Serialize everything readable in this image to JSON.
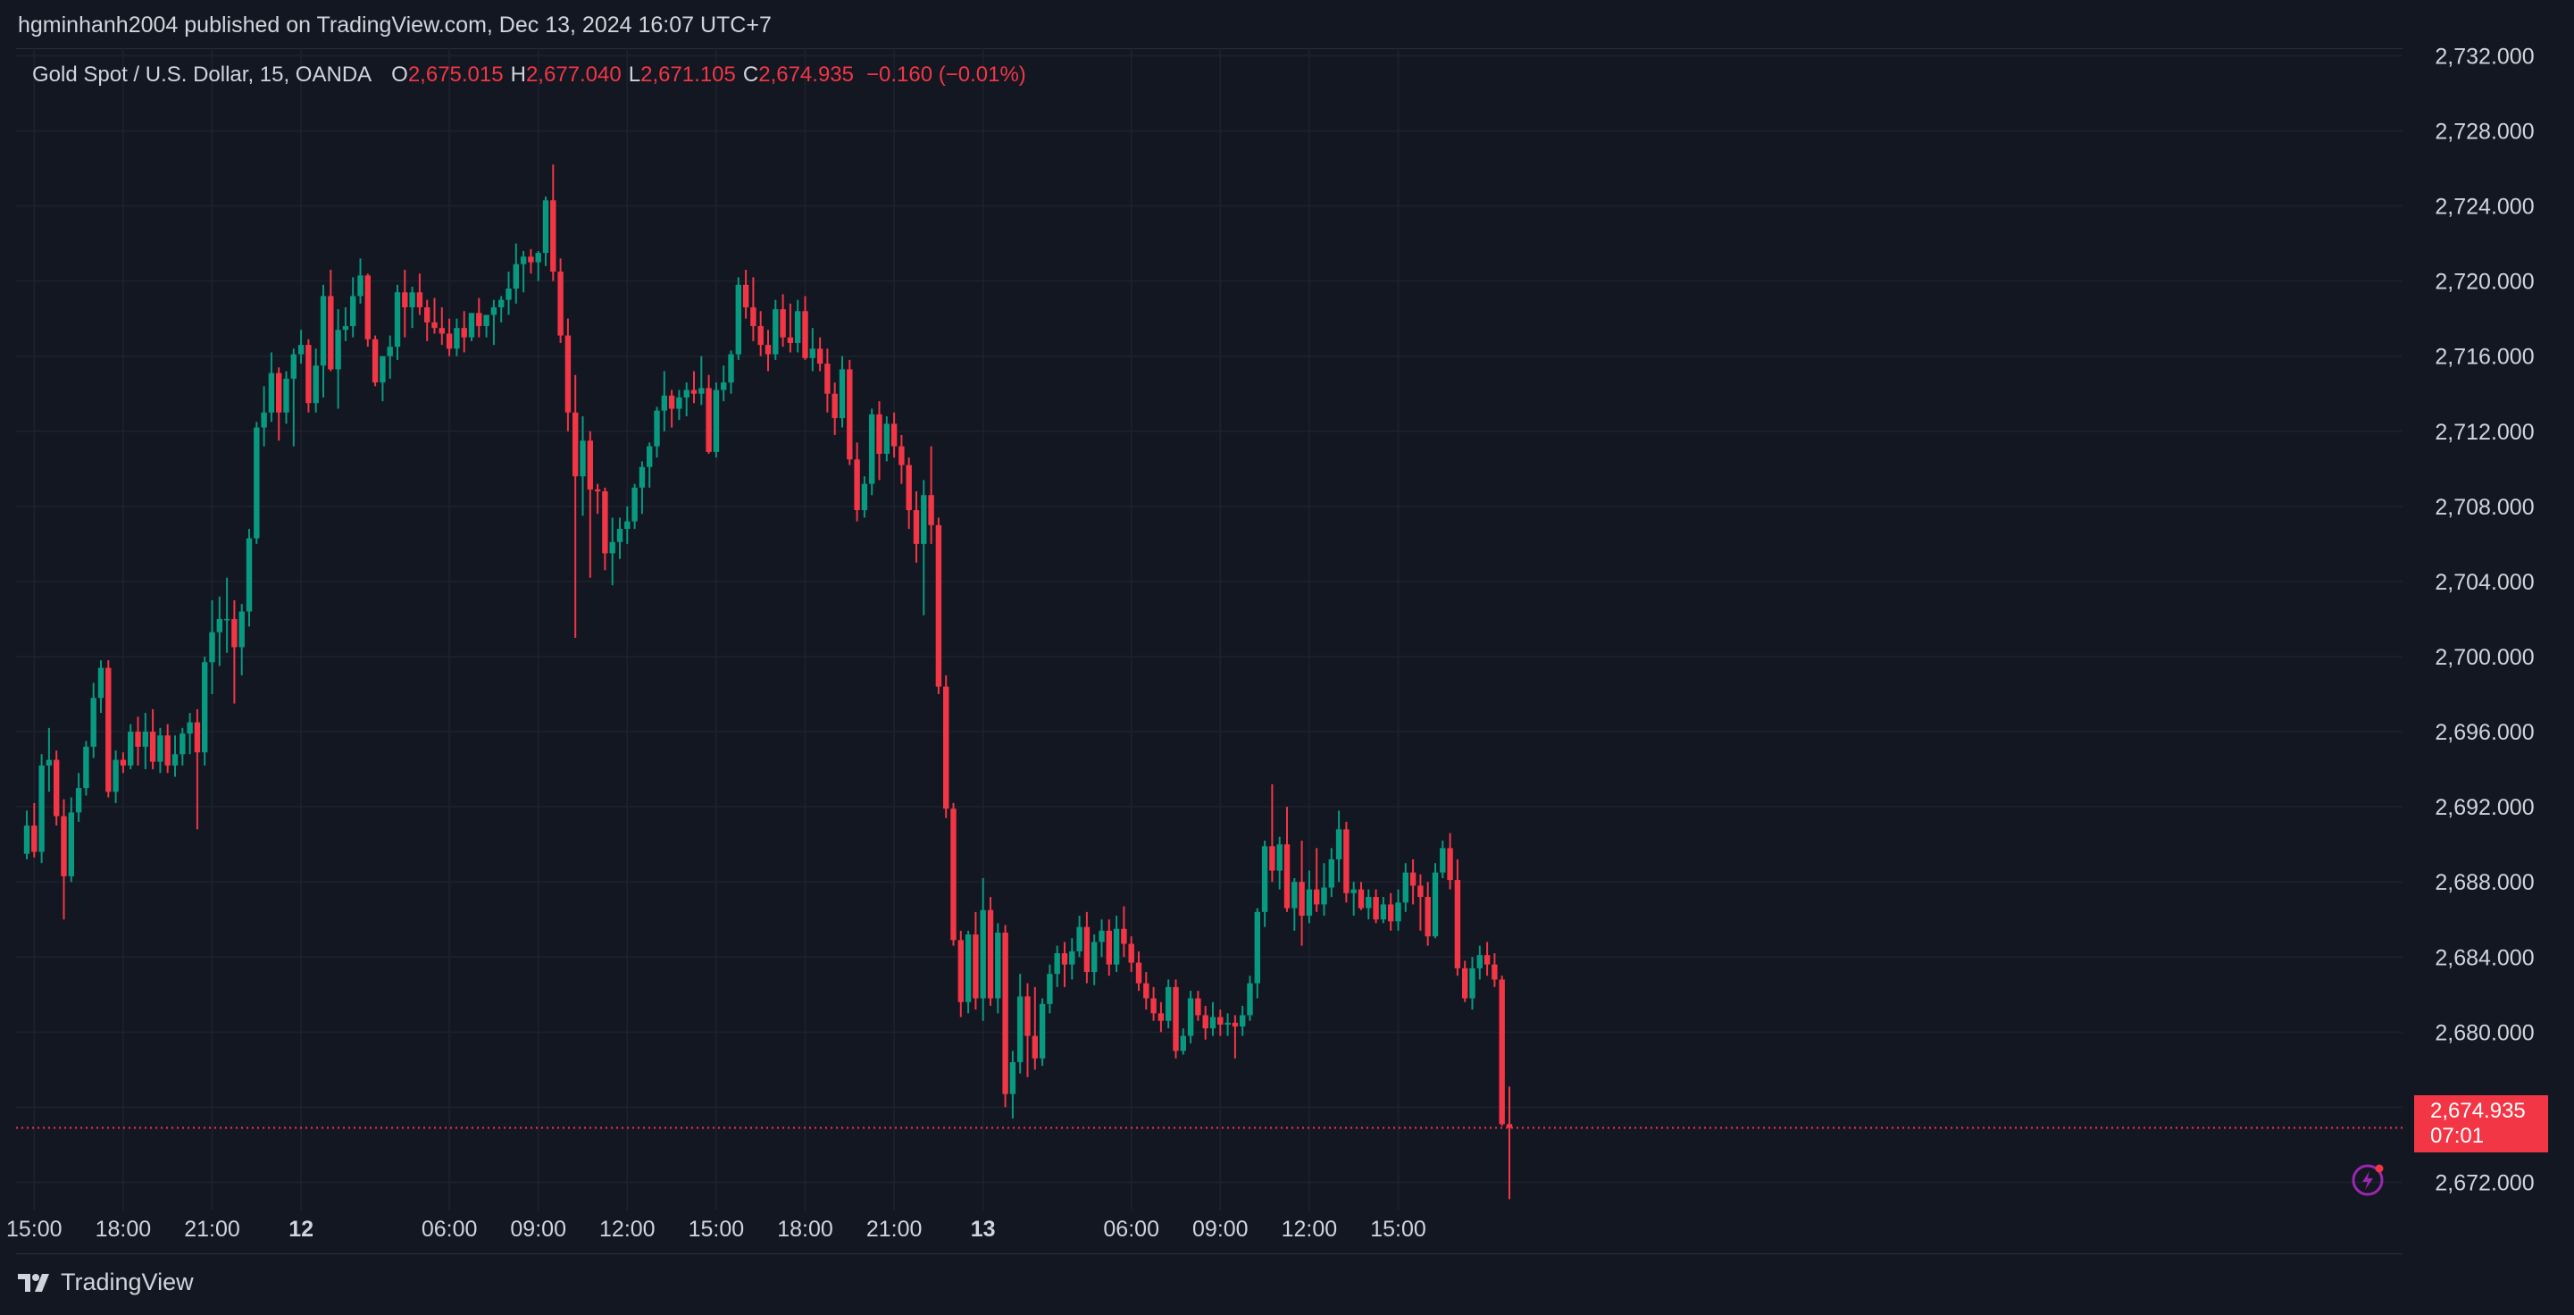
{
  "header": {
    "published_by": "hgminhanh2004 published on TradingView.com, Dec 13, 2024 16:07 UTC+7"
  },
  "legend": {
    "symbol": "Gold Spot / U.S. Dollar, 15, OANDA",
    "open_label": "O",
    "open": "2,675.015",
    "high_label": "H",
    "high": "2,677.040",
    "low_label": "L",
    "low": "2,671.105",
    "close_label": "C",
    "close": "2,674.935",
    "change": "−0.160 (−0.01%)"
  },
  "last_price": {
    "price": "2,674.935",
    "countdown": "07:01"
  },
  "footer": {
    "brand": "TradingView"
  },
  "colors": {
    "background": "#131722",
    "up": "#089981",
    "down": "#f23645",
    "grid": "#1e222d",
    "text": "#d1d4dc"
  },
  "icons": [
    "tradingview-logo-icon",
    "lightning-alert-icon"
  ],
  "chart_data": {
    "type": "candlestick",
    "timeframe": "15",
    "y_ticks": [
      "2,732.000",
      "2,728.000",
      "2,724.000",
      "2,720.000",
      "2,716.000",
      "2,712.000",
      "2,708.000",
      "2,704.000",
      "2,700.000",
      "2,696.000",
      "2,692.000",
      "2,688.000",
      "2,684.000",
      "2,680.000",
      "2,676.000",
      "2,672.000"
    ],
    "ylim": [
      2670.5,
      2732.4
    ],
    "x_ticks": [
      {
        "label": "15:00",
        "bar": 1,
        "bold": false
      },
      {
        "label": "18:00",
        "bar": 13,
        "bold": false
      },
      {
        "label": "21:00",
        "bar": 25,
        "bold": false
      },
      {
        "label": "12",
        "bar": 37,
        "bold": true
      },
      {
        "label": "06:00",
        "bar": 57,
        "bold": false
      },
      {
        "label": "09:00",
        "bar": 69,
        "bold": false
      },
      {
        "label": "12:00",
        "bar": 81,
        "bold": false
      },
      {
        "label": "15:00",
        "bar": 93,
        "bold": false
      },
      {
        "label": "18:00",
        "bar": 105,
        "bold": false
      },
      {
        "label": "21:00",
        "bar": 117,
        "bold": false
      },
      {
        "label": "13",
        "bar": 129,
        "bold": true
      },
      {
        "label": "06:00",
        "bar": 149,
        "bold": false
      },
      {
        "label": "09:00",
        "bar": 161,
        "bold": false
      },
      {
        "label": "12:00",
        "bar": 173,
        "bold": false
      },
      {
        "label": "15:00",
        "bar": 185,
        "bold": false
      }
    ],
    "candles": [
      [
        2689.5,
        2691.8,
        2689.2,
        2691.0
      ],
      [
        2691.0,
        2692.2,
        2689.3,
        2689.6
      ],
      [
        2689.6,
        2694.8,
        2689.0,
        2694.2
      ],
      [
        2694.2,
        2696.2,
        2692.8,
        2694.5
      ],
      [
        2694.5,
        2695.0,
        2691.0,
        2691.5
      ],
      [
        2691.5,
        2692.4,
        2686.0,
        2688.3
      ],
      [
        2688.3,
        2692.5,
        2688.0,
        2691.7
      ],
      [
        2691.7,
        2693.8,
        2691.2,
        2693.0
      ],
      [
        2693.0,
        2695.5,
        2692.6,
        2695.2
      ],
      [
        2695.2,
        2698.6,
        2694.6,
        2697.8
      ],
      [
        2697.8,
        2699.8,
        2697.0,
        2699.4
      ],
      [
        2699.4,
        2699.8,
        2692.5,
        2692.8
      ],
      [
        2692.8,
        2695.0,
        2692.2,
        2694.5
      ],
      [
        2694.5,
        2694.9,
        2693.8,
        2694.2
      ],
      [
        2694.2,
        2696.4,
        2694.0,
        2696.0
      ],
      [
        2696.0,
        2696.8,
        2694.2,
        2695.2
      ],
      [
        2695.2,
        2697.0,
        2694.0,
        2696.0
      ],
      [
        2696.0,
        2697.2,
        2694.0,
        2694.4
      ],
      [
        2694.4,
        2696.2,
        2693.8,
        2695.8
      ],
      [
        2695.8,
        2696.4,
        2693.8,
        2694.2
      ],
      [
        2694.2,
        2695.8,
        2693.6,
        2694.8
      ],
      [
        2694.8,
        2696.2,
        2694.2,
        2695.9
      ],
      [
        2695.9,
        2697.0,
        2694.8,
        2696.5
      ],
      [
        2696.5,
        2697.2,
        2690.8,
        2694.9
      ],
      [
        2694.9,
        2700.0,
        2694.2,
        2699.7
      ],
      [
        2699.7,
        2703.0,
        2698.0,
        2701.3
      ],
      [
        2701.3,
        2703.2,
        2699.5,
        2702.0
      ],
      [
        2702.0,
        2704.2,
        2700.2,
        2702.0
      ],
      [
        2702.0,
        2703.0,
        2697.5,
        2700.5
      ],
      [
        2700.5,
        2702.8,
        2699.0,
        2702.4
      ],
      [
        2702.4,
        2706.8,
        2701.6,
        2706.3
      ],
      [
        2706.3,
        2712.5,
        2706.0,
        2712.2
      ],
      [
        2712.2,
        2714.4,
        2711.2,
        2713.0
      ],
      [
        2713.0,
        2716.2,
        2712.5,
        2715.1
      ],
      [
        2715.1,
        2715.4,
        2711.5,
        2713.0
      ],
      [
        2713.0,
        2715.2,
        2712.4,
        2714.8
      ],
      [
        2714.8,
        2716.4,
        2711.2,
        2716.1
      ],
      [
        2716.1,
        2717.4,
        2715.6,
        2716.6
      ],
      [
        2716.6,
        2716.9,
        2713.0,
        2713.5
      ],
      [
        2713.5,
        2716.4,
        2713.0,
        2715.5
      ],
      [
        2715.5,
        2719.8,
        2713.8,
        2719.2
      ],
      [
        2719.2,
        2720.6,
        2715.2,
        2715.3
      ],
      [
        2715.3,
        2718.5,
        2713.2,
        2717.4
      ],
      [
        2717.4,
        2718.6,
        2716.8,
        2717.6
      ],
      [
        2717.6,
        2720.2,
        2717.0,
        2719.2
      ],
      [
        2719.2,
        2721.2,
        2718.8,
        2720.3
      ],
      [
        2720.3,
        2720.4,
        2716.5,
        2716.9
      ],
      [
        2716.9,
        2717.1,
        2714.4,
        2714.6
      ],
      [
        2714.6,
        2716.0,
        2713.6,
        2716.0
      ],
      [
        2716.0,
        2717.1,
        2714.8,
        2716.5
      ],
      [
        2716.5,
        2719.8,
        2715.8,
        2719.4
      ],
      [
        2719.4,
        2720.6,
        2717.0,
        2718.6
      ],
      [
        2718.6,
        2719.7,
        2717.5,
        2719.4
      ],
      [
        2719.4,
        2720.4,
        2718.2,
        2718.6
      ],
      [
        2718.6,
        2719.0,
        2716.8,
        2717.8
      ],
      [
        2717.8,
        2719.1,
        2717.2,
        2717.5
      ],
      [
        2717.5,
        2718.6,
        2716.6,
        2717.2
      ],
      [
        2717.2,
        2718.0,
        2716.0,
        2716.4
      ],
      [
        2716.4,
        2718.0,
        2716.0,
        2717.5
      ],
      [
        2717.5,
        2718.4,
        2716.2,
        2717.0
      ],
      [
        2717.0,
        2718.3,
        2716.8,
        2718.3
      ],
      [
        2718.3,
        2719.1,
        2717.0,
        2717.6
      ],
      [
        2717.6,
        2718.2,
        2717.0,
        2718.2
      ],
      [
        2718.2,
        2719.0,
        2716.6,
        2718.6
      ],
      [
        2718.6,
        2719.2,
        2717.8,
        2719.0
      ],
      [
        2719.0,
        2720.5,
        2718.2,
        2719.6
      ],
      [
        2719.6,
        2722.0,
        2718.8,
        2720.9
      ],
      [
        2720.9,
        2721.6,
        2719.4,
        2721.3
      ],
      [
        2721.3,
        2721.7,
        2720.4,
        2721.0
      ],
      [
        2721.0,
        2721.6,
        2720.0,
        2721.5
      ],
      [
        2721.5,
        2724.5,
        2720.8,
        2724.3
      ],
      [
        2724.3,
        2726.2,
        2720.0,
        2720.5
      ],
      [
        2720.5,
        2721.2,
        2716.7,
        2717.1
      ],
      [
        2717.1,
        2718.0,
        2712.0,
        2713.0
      ],
      [
        2713.0,
        2715.0,
        2701.0,
        2709.6
      ],
      [
        2709.6,
        2712.8,
        2707.5,
        2711.5
      ],
      [
        2711.5,
        2712.0,
        2704.2,
        2708.9
      ],
      [
        2708.9,
        2709.2,
        2707.6,
        2708.8
      ],
      [
        2708.8,
        2709.0,
        2704.6,
        2705.5
      ],
      [
        2705.5,
        2707.4,
        2703.8,
        2706.1
      ],
      [
        2706.1,
        2707.4,
        2705.2,
        2706.8
      ],
      [
        2706.8,
        2708.0,
        2706.0,
        2707.2
      ],
      [
        2707.2,
        2709.2,
        2706.8,
        2709.0
      ],
      [
        2709.0,
        2710.4,
        2707.6,
        2710.1
      ],
      [
        2710.1,
        2711.4,
        2709.0,
        2711.2
      ],
      [
        2711.2,
        2713.3,
        2710.6,
        2713.1
      ],
      [
        2713.1,
        2715.2,
        2712.0,
        2713.9
      ],
      [
        2713.9,
        2714.2,
        2712.2,
        2713.2
      ],
      [
        2713.2,
        2714.2,
        2712.6,
        2713.8
      ],
      [
        2713.8,
        2714.6,
        2712.8,
        2714.2
      ],
      [
        2714.2,
        2715.2,
        2713.5,
        2714.0
      ],
      [
        2714.0,
        2716.0,
        2713.4,
        2714.3
      ],
      [
        2714.3,
        2715.0,
        2710.8,
        2710.9
      ],
      [
        2710.9,
        2714.6,
        2710.6,
        2714.2
      ],
      [
        2714.2,
        2715.5,
        2713.6,
        2714.6
      ],
      [
        2714.6,
        2716.3,
        2714.0,
        2716.1
      ],
      [
        2716.1,
        2720.2,
        2715.8,
        2719.8
      ],
      [
        2719.8,
        2720.6,
        2718.0,
        2718.6
      ],
      [
        2718.6,
        2720.2,
        2716.8,
        2717.6
      ],
      [
        2717.6,
        2718.4,
        2716.0,
        2716.6
      ],
      [
        2716.6,
        2717.4,
        2715.2,
        2716.1
      ],
      [
        2716.1,
        2719.0,
        2715.8,
        2718.5
      ],
      [
        2718.5,
        2719.3,
        2716.5,
        2717.0
      ],
      [
        2717.0,
        2718.8,
        2716.2,
        2716.7
      ],
      [
        2716.7,
        2719.0,
        2716.2,
        2718.4
      ],
      [
        2718.4,
        2719.2,
        2715.8,
        2715.9
      ],
      [
        2715.9,
        2717.5,
        2715.2,
        2716.4
      ],
      [
        2716.4,
        2717.0,
        2715.2,
        2715.6
      ],
      [
        2715.6,
        2716.4,
        2713.0,
        2714.0
      ],
      [
        2714.0,
        2714.6,
        2711.8,
        2712.7
      ],
      [
        2712.7,
        2716.0,
        2712.2,
        2715.3
      ],
      [
        2715.3,
        2715.8,
        2710.2,
        2710.5
      ],
      [
        2710.5,
        2711.4,
        2707.2,
        2707.8
      ],
      [
        2707.8,
        2709.6,
        2707.4,
        2709.2
      ],
      [
        2709.2,
        2713.2,
        2708.6,
        2712.9
      ],
      [
        2712.9,
        2713.6,
        2709.4,
        2710.8
      ],
      [
        2710.8,
        2712.8,
        2710.4,
        2712.4
      ],
      [
        2712.4,
        2713.0,
        2710.6,
        2711.2
      ],
      [
        2711.2,
        2711.8,
        2709.2,
        2710.2
      ],
      [
        2710.2,
        2710.6,
        2706.8,
        2707.8
      ],
      [
        2707.8,
        2708.8,
        2705.0,
        2706.0
      ],
      [
        2706.0,
        2709.4,
        2702.2,
        2708.6
      ],
      [
        2708.6,
        2711.2,
        2706.0,
        2707.0
      ],
      [
        2707.0,
        2707.4,
        2698.0,
        2698.4
      ],
      [
        2698.4,
        2699.0,
        2691.4,
        2691.9
      ],
      [
        2691.9,
        2692.2,
        2684.6,
        2684.9
      ],
      [
        2684.9,
        2685.4,
        2680.8,
        2681.6
      ],
      [
        2681.6,
        2685.4,
        2681.0,
        2685.2
      ],
      [
        2685.2,
        2686.4,
        2681.2,
        2681.8
      ],
      [
        2681.8,
        2688.2,
        2680.6,
        2686.5
      ],
      [
        2686.5,
        2687.2,
        2681.4,
        2681.8
      ],
      [
        2681.8,
        2685.8,
        2681.0,
        2685.3
      ],
      [
        2685.3,
        2685.7,
        2676.0,
        2676.7
      ],
      [
        2676.7,
        2679.0,
        2675.4,
        2678.4
      ],
      [
        2678.4,
        2683.1,
        2677.8,
        2681.9
      ],
      [
        2681.9,
        2682.6,
        2677.6,
        2679.8
      ],
      [
        2679.8,
        2682.4,
        2678.0,
        2678.6
      ],
      [
        2678.6,
        2681.8,
        2678.2,
        2681.5
      ],
      [
        2681.5,
        2683.6,
        2681.0,
        2683.1
      ],
      [
        2683.1,
        2684.6,
        2682.4,
        2684.2
      ],
      [
        2684.2,
        2684.8,
        2682.4,
        2683.6
      ],
      [
        2683.6,
        2685.0,
        2682.8,
        2684.3
      ],
      [
        2684.3,
        2686.2,
        2684.0,
        2685.6
      ],
      [
        2685.6,
        2686.4,
        2682.6,
        2683.2
      ],
      [
        2683.2,
        2685.2,
        2682.5,
        2684.8
      ],
      [
        2684.8,
        2686.0,
        2684.0,
        2685.4
      ],
      [
        2685.4,
        2686.0,
        2683.0,
        2683.6
      ],
      [
        2683.6,
        2686.2,
        2683.2,
        2685.5
      ],
      [
        2685.5,
        2686.7,
        2684.0,
        2684.7
      ],
      [
        2684.7,
        2685.1,
        2683.2,
        2683.7
      ],
      [
        2683.7,
        2684.3,
        2682.2,
        2682.6
      ],
      [
        2682.6,
        2683.2,
        2681.2,
        2681.8
      ],
      [
        2681.8,
        2682.4,
        2680.6,
        2681.0
      ],
      [
        2681.0,
        2681.6,
        2680.0,
        2680.6
      ],
      [
        2680.6,
        2682.8,
        2680.2,
        2682.4
      ],
      [
        2682.4,
        2682.8,
        2678.6,
        2679.0
      ],
      [
        2679.0,
        2680.2,
        2678.8,
        2679.8
      ],
      [
        2679.8,
        2682.2,
        2679.4,
        2681.8
      ],
      [
        2681.8,
        2682.2,
        2680.6,
        2680.9
      ],
      [
        2680.9,
        2681.4,
        2679.6,
        2680.2
      ],
      [
        2680.2,
        2681.6,
        2679.8,
        2680.8
      ],
      [
        2680.8,
        2681.2,
        2679.8,
        2680.4
      ],
      [
        2680.4,
        2681.0,
        2679.8,
        2680.5
      ],
      [
        2680.5,
        2680.9,
        2678.6,
        2680.3
      ],
      [
        2680.3,
        2681.4,
        2679.8,
        2680.9
      ],
      [
        2680.9,
        2683.0,
        2680.6,
        2682.6
      ],
      [
        2682.6,
        2686.6,
        2681.8,
        2686.4
      ],
      [
        2686.4,
        2690.2,
        2685.6,
        2689.9
      ],
      [
        2689.9,
        2693.2,
        2688.0,
        2688.6
      ],
      [
        2688.6,
        2690.4,
        2687.6,
        2690.0
      ],
      [
        2690.0,
        2692.0,
        2686.4,
        2686.6
      ],
      [
        2686.6,
        2688.2,
        2685.4,
        2688.0
      ],
      [
        2688.0,
        2690.2,
        2684.6,
        2686.2
      ],
      [
        2686.2,
        2688.6,
        2685.8,
        2687.6
      ],
      [
        2687.6,
        2689.8,
        2686.4,
        2686.8
      ],
      [
        2686.8,
        2689.0,
        2686.2,
        2687.7
      ],
      [
        2687.7,
        2689.8,
        2687.2,
        2689.2
      ],
      [
        2689.2,
        2691.8,
        2688.0,
        2690.8
      ],
      [
        2690.8,
        2691.2,
        2686.9,
        2687.4
      ],
      [
        2687.4,
        2688.0,
        2686.2,
        2687.6
      ],
      [
        2687.6,
        2688.0,
        2686.5,
        2686.6
      ],
      [
        2686.6,
        2687.6,
        2686.0,
        2687.2
      ],
      [
        2687.2,
        2687.6,
        2685.8,
        2686.0
      ],
      [
        2686.0,
        2687.2,
        2685.8,
        2686.8
      ],
      [
        2686.8,
        2687.4,
        2685.4,
        2685.9
      ],
      [
        2685.9,
        2687.6,
        2685.4,
        2686.9
      ],
      [
        2686.9,
        2689.0,
        2686.4,
        2688.5
      ],
      [
        2688.5,
        2689.2,
        2686.8,
        2687.8
      ],
      [
        2687.8,
        2688.4,
        2685.4,
        2687.2
      ],
      [
        2687.2,
        2688.0,
        2684.6,
        2685.1
      ],
      [
        2685.1,
        2689.0,
        2685.0,
        2688.5
      ],
      [
        2688.5,
        2690.2,
        2688.2,
        2689.8
      ],
      [
        2689.8,
        2690.6,
        2687.6,
        2688.1
      ],
      [
        2688.1,
        2689.2,
        2683.0,
        2683.4
      ],
      [
        2683.4,
        2683.8,
        2681.6,
        2681.8
      ],
      [
        2681.8,
        2684.0,
        2681.2,
        2683.4
      ],
      [
        2683.4,
        2684.6,
        2682.8,
        2684.1
      ],
      [
        2684.1,
        2684.8,
        2683.0,
        2683.6
      ],
      [
        2683.6,
        2684.2,
        2682.4,
        2682.8
      ],
      [
        2682.8,
        2683.0,
        2675.0,
        2675.1
      ],
      [
        2675.1,
        2677.1,
        2671.1,
        2674.9
      ]
    ]
  }
}
